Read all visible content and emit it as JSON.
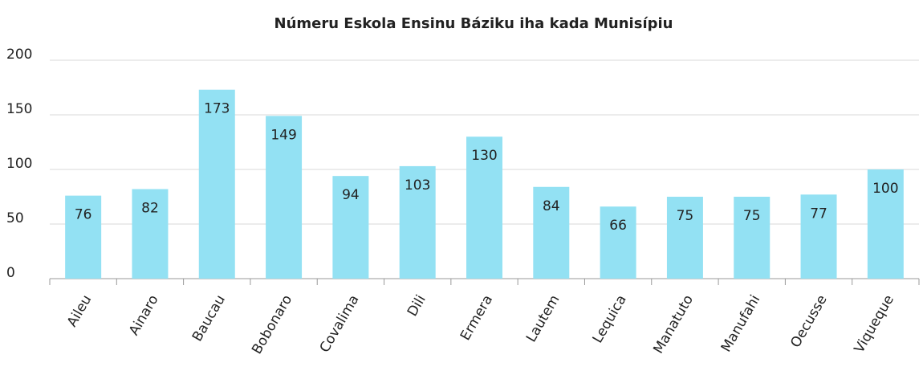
{
  "chart_data": {
    "type": "bar",
    "title": "Númeru Eskola Ensinu Báziku iha kada Munisípiu",
    "categories": [
      "Aileu",
      "Ainaro",
      "Baucau",
      "Bobonaro",
      "Covalima",
      "Dili",
      "Ermera",
      "Lautem",
      "Lequica",
      "Manatuto",
      "Manufahi",
      "Oecusse",
      "Viqueque"
    ],
    "values": [
      76,
      82,
      173,
      149,
      94,
      103,
      130,
      84,
      66,
      75,
      75,
      77,
      100
    ],
    "color": "#93e1f3",
    "ylim": [
      0,
      200
    ],
    "yticks": [
      0,
      50,
      100,
      150,
      200
    ],
    "grid": true
  }
}
